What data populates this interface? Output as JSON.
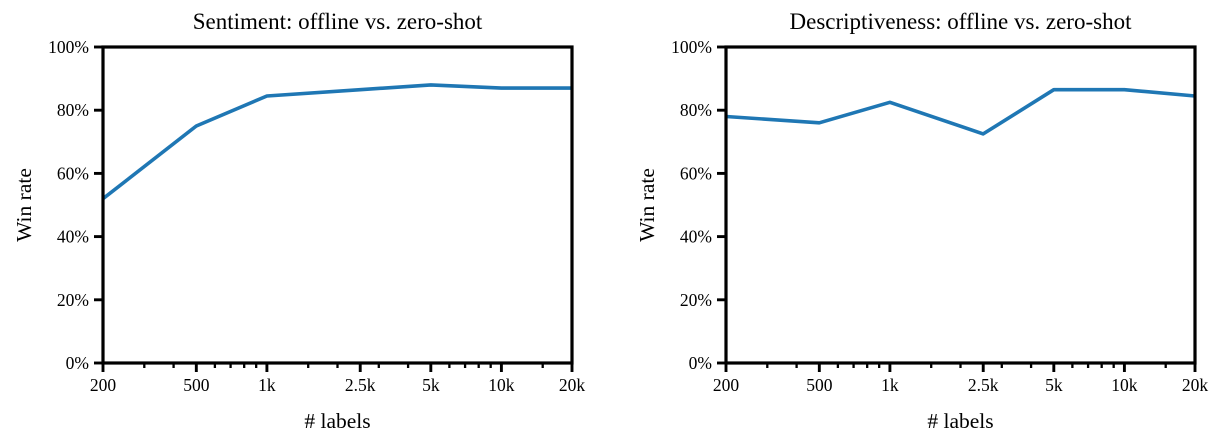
{
  "figure": {
    "background": "#ffffff",
    "axis_color": "#000000"
  },
  "chart_data": [
    {
      "type": "line",
      "title": "Sentiment: offline vs. zero-shot",
      "xlabel": "# labels",
      "ylabel": "Win rate",
      "x_scale": "log",
      "xlim": [
        200,
        20000
      ],
      "ylim": [
        0,
        100
      ],
      "x": [
        200,
        500,
        1000,
        2500,
        5000,
        10000,
        20000
      ],
      "x_tick_labels": [
        "200",
        "500",
        "1k",
        "2.5k",
        "5k",
        "10k",
        "20k"
      ],
      "minor_x_ticks": [
        300,
        400,
        600,
        700,
        800,
        900,
        1500,
        2000,
        3000,
        4000,
        6000,
        7000,
        8000,
        9000,
        15000
      ],
      "y_ticks": [
        0,
        20,
        40,
        60,
        80,
        100
      ],
      "y_tick_labels": [
        "0%",
        "20%",
        "40%",
        "60%",
        "80%",
        "100%"
      ],
      "series": [
        {
          "name": "offline",
          "color": "#1f77b4",
          "values": [
            52,
            75,
            84.5,
            86.5,
            88,
            87,
            87
          ]
        }
      ],
      "grid": false,
      "legend": "none"
    },
    {
      "type": "line",
      "title": "Descriptiveness: offline vs. zero-shot",
      "xlabel": "# labels",
      "ylabel": "Win rate",
      "x_scale": "log",
      "xlim": [
        200,
        20000
      ],
      "ylim": [
        0,
        100
      ],
      "x": [
        200,
        500,
        1000,
        2500,
        5000,
        10000,
        20000
      ],
      "x_tick_labels": [
        "200",
        "500",
        "1k",
        "2.5k",
        "5k",
        "10k",
        "20k"
      ],
      "minor_x_ticks": [
        300,
        400,
        600,
        700,
        800,
        900,
        1500,
        2000,
        3000,
        4000,
        6000,
        7000,
        8000,
        9000,
        15000
      ],
      "y_ticks": [
        0,
        20,
        40,
        60,
        80,
        100
      ],
      "y_tick_labels": [
        "0%",
        "20%",
        "40%",
        "60%",
        "80%",
        "100%"
      ],
      "series": [
        {
          "name": "offline",
          "color": "#1f77b4",
          "values": [
            78,
            76,
            82.5,
            72.5,
            86.5,
            86.5,
            84.5
          ]
        }
      ],
      "grid": false,
      "legend": "none"
    }
  ]
}
